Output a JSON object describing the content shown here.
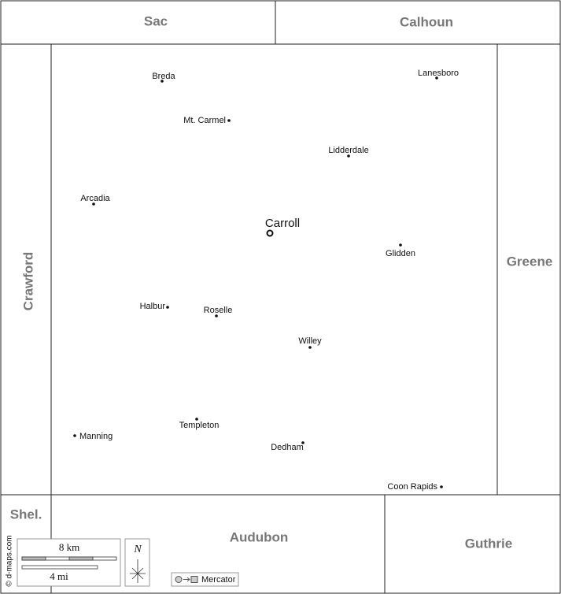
{
  "counties": [
    "Sac",
    "Calhoun",
    "Crawford",
    "Greene",
    "Shel.",
    "Audubon",
    "Guthrie"
  ],
  "seat": "Carroll",
  "towns": [
    "Breda",
    "Lanesboro",
    "Mt. Carmel",
    "Lidderdale",
    "Arcadia",
    "Glidden",
    "Halbur",
    "Roselle",
    "Willey",
    "Manning",
    "Templeton",
    "Dedham",
    "Coon Rapids"
  ],
  "scale": {
    "km": "8 km",
    "mi": "4 mi"
  },
  "north": "N",
  "projection": "Mercator",
  "credit": "© d-maps.com"
}
